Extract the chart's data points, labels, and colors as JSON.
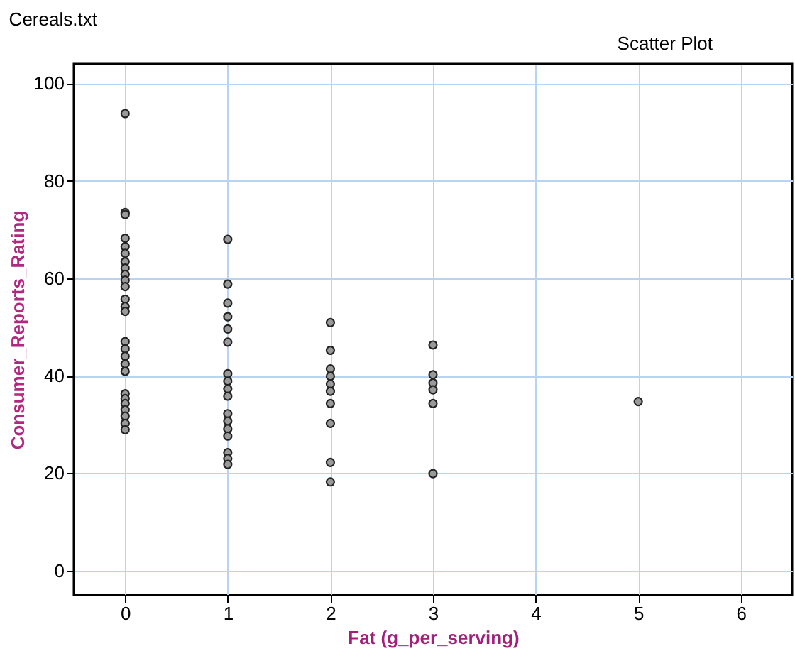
{
  "chart_data": {
    "type": "scatter",
    "title": "Cereals.txt",
    "xlabel": "Fat (g_per_serving)",
    "ylabel": "Consumer_Reports_Rating",
    "annotations": [
      "Scatter Plot"
    ],
    "series": [
      {
        "color": "#999999",
        "x": [
          0,
          0,
          0,
          0,
          0,
          0,
          0,
          0,
          0,
          0,
          0,
          0,
          0,
          0,
          0,
          0,
          0,
          0,
          0,
          0,
          0,
          0,
          0,
          0,
          0,
          0,
          1,
          1,
          1,
          1,
          1,
          1,
          1,
          1,
          1,
          1,
          1,
          1,
          1,
          1,
          1,
          1,
          1,
          2,
          2,
          2,
          2,
          2,
          2,
          2,
          2,
          2,
          2,
          3,
          3,
          3,
          3,
          3,
          3,
          5
        ],
        "values": [
          93.8,
          73.5,
          73.1,
          68.2,
          66.5,
          65.1,
          63.4,
          62.1,
          60.8,
          59.6,
          58.3,
          55.7,
          54.2,
          53.2,
          47.0,
          45.5,
          44.0,
          42.4,
          40.9,
          36.3,
          35.3,
          34.3,
          33.0,
          31.7,
          30.2,
          28.9,
          68.0,
          58.8,
          54.9,
          52.1,
          49.6,
          46.9,
          40.4,
          38.9,
          37.3,
          35.8,
          32.2,
          30.7,
          29.1,
          27.6,
          24.2,
          23.0,
          21.8,
          50.9,
          45.2,
          41.4,
          39.9,
          38.3,
          36.8,
          34.3,
          30.2,
          22.2,
          18.2,
          46.3,
          40.2,
          38.5,
          37.1,
          34.3,
          19.9,
          34.7
        ]
      }
    ],
    "xlim": [
      -0.5,
      6.5
    ],
    "xticks": [
      0,
      1,
      2,
      3,
      4,
      5,
      6
    ],
    "ylim": [
      -5,
      104
    ],
    "yticks": [
      0,
      20,
      40,
      60,
      80,
      100
    ],
    "grid": true,
    "marker": "circle",
    "legend": false
  }
}
